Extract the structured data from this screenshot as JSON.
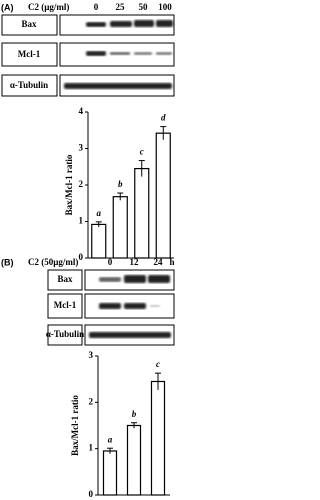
{
  "panel_a": {
    "label": "(A)",
    "treatment": "C2 (µg/ml)",
    "lanes": [
      "0",
      "25",
      "50",
      "100"
    ],
    "blots": [
      "Bax",
      "Mcl-1",
      "α-Tubulin"
    ]
  },
  "panel_b": {
    "label": "(B)",
    "treatment": "C2 (50µg/ml)",
    "lanes": [
      "0",
      "12",
      "24"
    ],
    "unit": "h",
    "blots": [
      "Bax",
      "Mcl-1",
      "α-Tubulin"
    ]
  },
  "chart_data": [
    {
      "type": "bar",
      "ylabel": "Bax/Mcl-1 ratio",
      "categories": [
        null,
        null,
        null,
        null
      ],
      "values": [
        0.92,
        1.68,
        2.45,
        3.42
      ],
      "errors": [
        0.07,
        0.1,
        0.22,
        0.18
      ],
      "annotations": [
        "a",
        "b",
        "c",
        "d"
      ],
      "color": "#ffffff",
      "ylim": [
        0,
        4
      ],
      "yticks": [
        0,
        1,
        2,
        3,
        4
      ]
    },
    {
      "type": "bar",
      "ylabel": "Bax/Mcl-1 ratio",
      "categories": [
        null,
        null,
        null
      ],
      "values": [
        0.95,
        1.5,
        2.45
      ],
      "errors": [
        0.06,
        0.06,
        0.18
      ],
      "annotations": [
        "a",
        "b",
        "c"
      ],
      "color": "#ffffff",
      "ylim": [
        0,
        3
      ],
      "yticks": [
        0,
        1,
        2,
        3
      ]
    }
  ]
}
